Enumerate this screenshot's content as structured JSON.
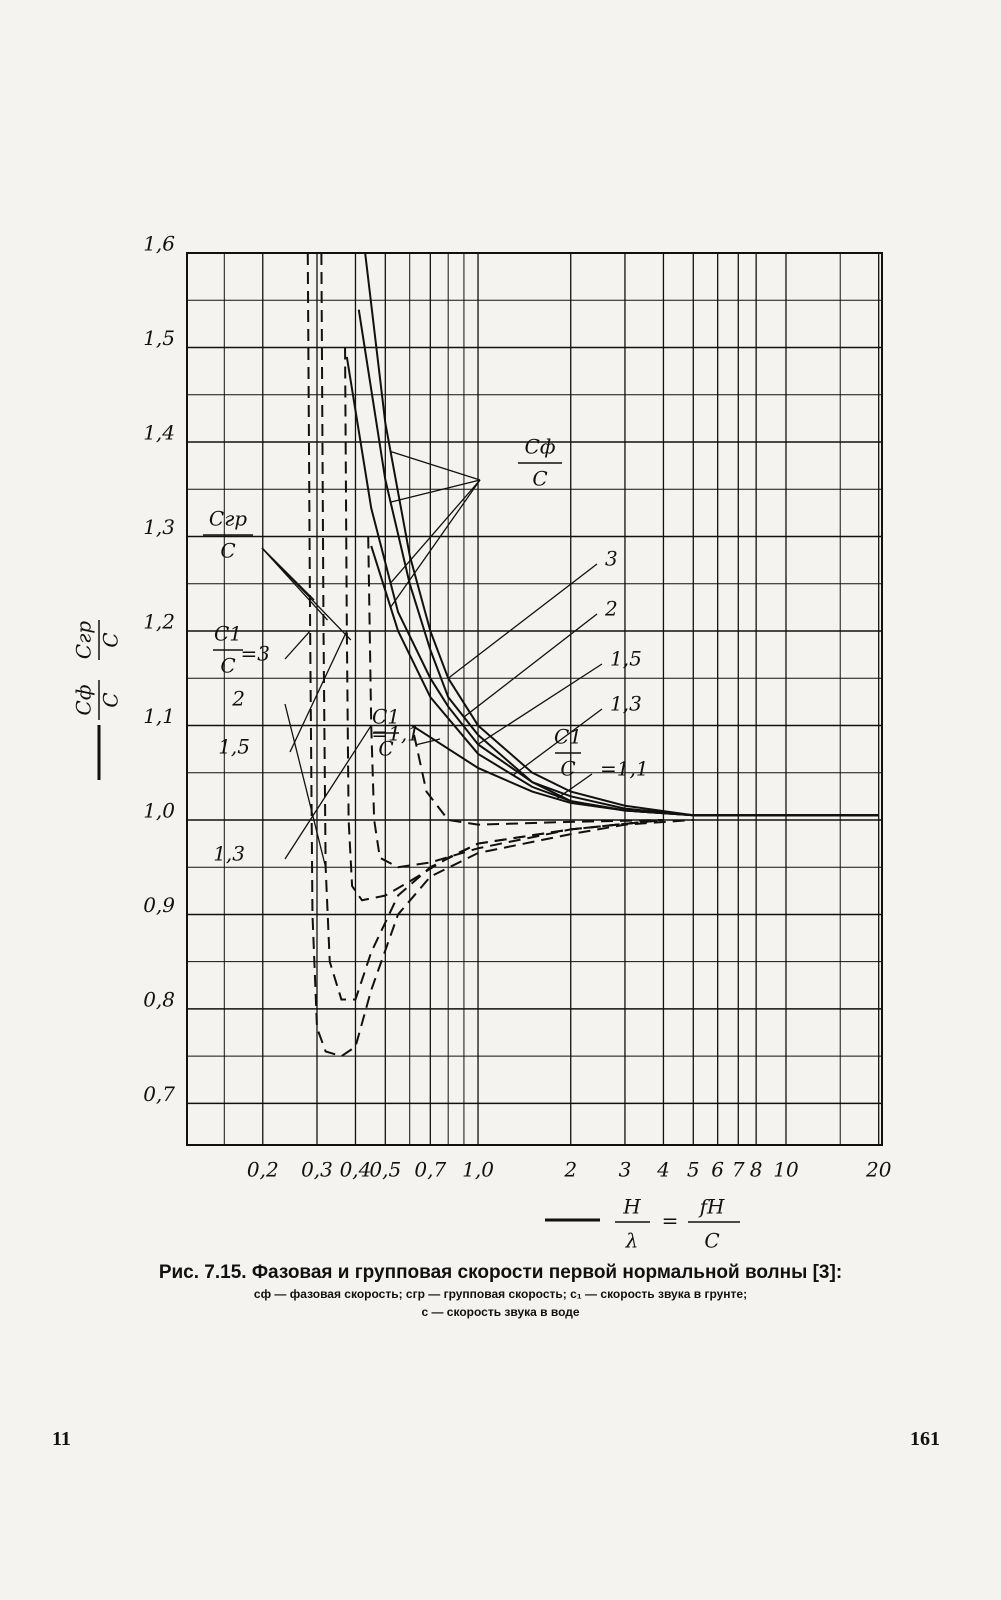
{
  "chart_data": {
    "type": "line",
    "y_axis_label": {
      "num_phase": "Cф",
      "num_group": "Cгр",
      "den": "C"
    },
    "x_axis_label": {
      "left_num": "H",
      "left_den": "λ",
      "eq": "=",
      "right_num": "fH",
      "right_den": "C"
    },
    "phase_label": {
      "num": "Cф",
      "den": "C"
    },
    "group_label": {
      "num": "Cгр",
      "den": "C"
    },
    "ratio_labels": [
      {
        "num": "C1",
        "den": "C"
      },
      {
        "num": "C1",
        "den": "C"
      },
      {
        "num": "C1",
        "den": "C"
      }
    ],
    "xscale": "log",
    "xlim": [
      0.1135,
      20.5
    ],
    "ylim": [
      0.656,
      1.6
    ],
    "xticks": [
      {
        "value": 0.2,
        "label": "0,2"
      },
      {
        "value": 0.3,
        "label": "0,3"
      },
      {
        "value": 0.4,
        "label": "0,4"
      },
      {
        "value": 0.5,
        "label": "0,5"
      },
      {
        "value": 0.7,
        "label": "0,7"
      },
      {
        "value": 1.0,
        "label": "1,0"
      },
      2,
      3,
      4,
      5,
      6,
      7,
      8,
      10,
      20
    ],
    "xminor": [
      0.15,
      0.6,
      0.8,
      0.9,
      15
    ],
    "yticks": [
      {
        "value": 0.7,
        "label": "0,7"
      },
      {
        "value": 0.8,
        "label": "0,8"
      },
      {
        "value": 0.9,
        "label": "0,9"
      },
      {
        "value": 1.0,
        "label": "1,0"
      },
      {
        "value": 1.1,
        "label": "1,1"
      },
      {
        "value": 1.2,
        "label": "1,2"
      },
      {
        "value": 1.3,
        "label": "1,3"
      },
      {
        "value": 1.4,
        "label": "1,4"
      },
      {
        "value": 1.5,
        "label": "1,5"
      },
      {
        "value": 1.6,
        "label": "1,6"
      }
    ],
    "yminor": [
      0.75,
      0.85,
      0.95,
      1.05,
      1.15,
      1.25,
      1.35,
      1.45,
      1.55
    ],
    "grid": true,
    "series": [
      {
        "name": "3",
        "color": "#111",
        "style": "solid",
        "x": [
          0.43,
          0.5,
          0.6,
          0.7,
          0.8,
          1.0,
          1.5,
          2,
          3,
          5,
          20
        ],
        "values": [
          1.6,
          1.42,
          1.28,
          1.2,
          1.15,
          1.1,
          1.05,
          1.03,
          1.015,
          1.005,
          1.005
        ]
      },
      {
        "name": "2",
        "color": "#111",
        "style": "solid",
        "x": [
          0.41,
          0.5,
          0.6,
          0.7,
          0.8,
          1.0,
          1.5,
          2,
          3,
          5,
          20
        ],
        "values": [
          1.54,
          1.36,
          1.25,
          1.18,
          1.13,
          1.09,
          1.04,
          1.025,
          1.012,
          1.005,
          1.005
        ]
      },
      {
        "name": "1,5",
        "color": "#111",
        "style": "solid",
        "x": [
          0.375,
          0.45,
          0.55,
          0.7,
          0.8,
          1.0,
          1.5,
          2,
          3,
          5,
          20
        ],
        "values": [
          1.49,
          1.33,
          1.22,
          1.15,
          1.12,
          1.08,
          1.04,
          1.02,
          1.01,
          1.005,
          1.005
        ]
      },
      {
        "name": "1,3",
        "color": "#111",
        "style": "solid",
        "x": [
          0.45,
          0.55,
          0.7,
          1.0,
          1.5,
          2,
          3,
          5,
          20
        ],
        "values": [
          1.29,
          1.2,
          1.13,
          1.07,
          1.035,
          1.02,
          1.01,
          1.005,
          1.005
        ]
      },
      {
        "name": "=1,1",
        "color": "#111",
        "style": "solid",
        "x": [
          0.61,
          1.0,
          1.5,
          2,
          3,
          5,
          20
        ],
        "values": [
          1.1,
          1.055,
          1.03,
          1.018,
          1.01,
          1.005,
          1.005
        ]
      },
      {
        "name": "=3",
        "color": "#111",
        "style": "dashed",
        "x": [
          0.28,
          0.285,
          0.29,
          0.3,
          0.32,
          0.36,
          0.4,
          0.45,
          0.55,
          0.7,
          1,
          2,
          3,
          5
        ],
        "values": [
          1.6,
          1.2,
          0.9,
          0.78,
          0.755,
          0.75,
          0.76,
          0.82,
          0.9,
          0.94,
          0.965,
          0.985,
          0.995,
          1.0
        ]
      },
      {
        "name": "2",
        "color": "#111",
        "style": "dashed",
        "x": [
          0.31,
          0.315,
          0.32,
          0.33,
          0.36,
          0.4,
          0.45,
          0.55,
          0.7,
          1,
          2,
          4
        ],
        "values": [
          1.6,
          1.2,
          0.95,
          0.85,
          0.81,
          0.81,
          0.86,
          0.92,
          0.95,
          0.975,
          0.99,
          1.0
        ]
      },
      {
        "name": "1,5",
        "color": "#111",
        "style": "dashed",
        "x": [
          0.37,
          0.375,
          0.38,
          0.39,
          0.42,
          0.5,
          0.6,
          0.8,
          1,
          2,
          4
        ],
        "values": [
          1.5,
          1.2,
          1.0,
          0.93,
          0.915,
          0.92,
          0.935,
          0.96,
          0.975,
          0.99,
          1.0
        ]
      },
      {
        "name": "1,3",
        "color": "#111",
        "style": "dashed",
        "x": [
          0.44,
          0.45,
          0.46,
          0.48,
          0.55,
          0.7,
          1,
          2,
          4
        ],
        "values": [
          1.3,
          1.1,
          1.0,
          0.96,
          0.95,
          0.955,
          0.97,
          0.99,
          1.0
        ]
      },
      {
        "name": "=1,1",
        "color": "#111",
        "style": "dashed",
        "x": [
          0.62,
          0.68,
          0.8,
          1,
          2,
          4
        ],
        "values": [
          1.09,
          1.03,
          1.0,
          0.995,
          0.998,
          1.0
        ]
      }
    ]
  },
  "caption": {
    "line1": "Рис. 7.15. Фазовая и групповая скорости первой нормальной волны [3]:",
    "line2": "cф — фазовая скорость; cгр — групповая скорость; c₁ — скорость звука в грунте;",
    "line3": "c — скорость звука в воде"
  },
  "footer": {
    "left": "11",
    "right": "161"
  }
}
